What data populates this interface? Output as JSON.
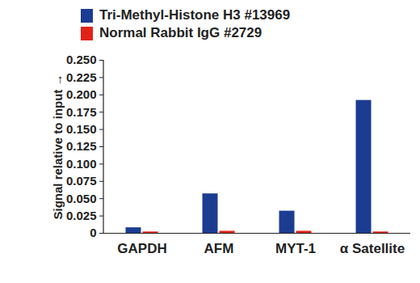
{
  "chart_data": {
    "type": "bar",
    "y_label": "Signal relative to input",
    "categories": [
      "GAPDH",
      "AFM",
      "MYT-1",
      "α Satellite"
    ],
    "series": [
      {
        "name": "Tri-Methyl-Histone H3 #13969",
        "color": "#1b3c91",
        "values": [
          0.008,
          0.057,
          0.032,
          0.192
        ]
      },
      {
        "name": "Normal Rabbit IgG #2729",
        "color": "#e2231a",
        "values": [
          0.002,
          0.003,
          0.003,
          0.002
        ]
      }
    ],
    "ylim": [
      0,
      0.25
    ],
    "yticks": [
      0,
      0.025,
      {
        "value": 0.05,
        "label": "0.050"
      },
      0.075,
      {
        "value": 0.1,
        "label": "0.100"
      },
      0.125,
      {
        "value": 0.15,
        "label": "0.150"
      },
      0.175,
      {
        "value": 0.2,
        "label": "0.200"
      },
      0.225,
      {
        "value": 0.25,
        "label": "0.250"
      }
    ],
    "legend": "top-left",
    "grid": false
  }
}
